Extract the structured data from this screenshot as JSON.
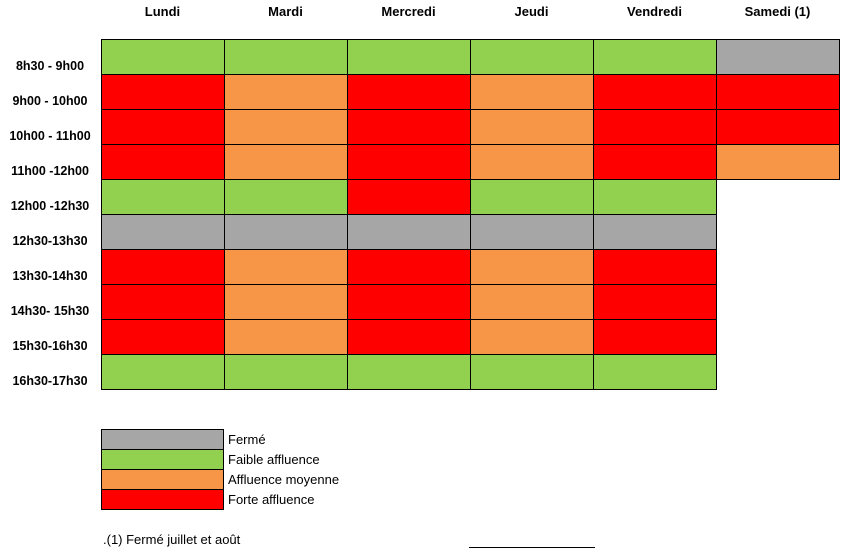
{
  "colors": {
    "F": "#a6a6a6",
    "L": "#92d050",
    "M": "#f79646",
    "H": "#ff0000"
  },
  "chart_data": {
    "type": "heatmap",
    "title": "",
    "columns": [
      "Lundi",
      "Mardi",
      "Mercredi",
      "Jeudi",
      "Vendredi",
      "Samedi (1)"
    ],
    "rows": [
      "8h30 - 9h00",
      "9h00 - 10h00",
      "10h00 - 11h00",
      "11h00 -12h00",
      "12h00 -12h30",
      "12h30-13h30",
      "13h30-14h30",
      "14h30- 15h30",
      "15h30-16h30",
      "16h30-17h30"
    ],
    "cells": [
      [
        "L",
        "L",
        "L",
        "L",
        "L",
        "F"
      ],
      [
        "H",
        "M",
        "H",
        "M",
        "H",
        "H"
      ],
      [
        "H",
        "M",
        "H",
        "M",
        "H",
        "H"
      ],
      [
        "H",
        "M",
        "H",
        "M",
        "H",
        "M"
      ],
      [
        "L",
        "L",
        "H",
        "L",
        "L",
        null
      ],
      [
        "F",
        "F",
        "F",
        "F",
        "F",
        null
      ],
      [
        "H",
        "M",
        "H",
        "M",
        "H",
        null
      ],
      [
        "H",
        "M",
        "H",
        "M",
        "H",
        null
      ],
      [
        "H",
        "M",
        "H",
        "M",
        "H",
        null
      ],
      [
        "L",
        "L",
        "L",
        "L",
        "L",
        null
      ]
    ],
    "legend": [
      {
        "key": "F",
        "label": "Fermé"
      },
      {
        "key": "L",
        "label": "Faible affluence"
      },
      {
        "key": "M",
        "label": "Affluence moyenne"
      },
      {
        "key": "H",
        "label": "Forte affluence"
      }
    ],
    "legend_placement": "bottom-left"
  },
  "footnote": ".(1) Fermé juillet et août"
}
